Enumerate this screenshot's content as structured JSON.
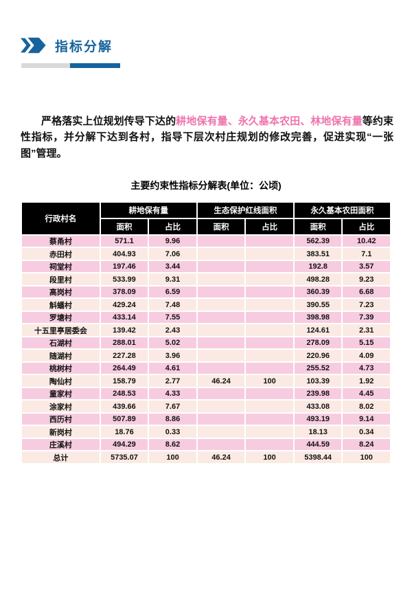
{
  "colors": {
    "accent_blue": "#17639d",
    "bar_gray": "#d9d9d9",
    "highlight_pink": "#ef73ac",
    "row_pink": "#f7cce0",
    "row_cream": "#fbeae3",
    "table_header_bg": "#000000"
  },
  "header": {
    "title": "指标分解"
  },
  "paragraph": {
    "lead": "严格落实上位规划传导下达的",
    "highlight": "耕地保有量、永久基本农田、林地保有量",
    "rest": "等约束性指标，并分解下达到各村，指导下层次村庄规划的修改完善，促进实现“一张图”管理。"
  },
  "table": {
    "title": "主要约束性指标分解表(单位：公顷)",
    "header": {
      "village": "行政村名",
      "groups": [
        {
          "label": "耕地保有量"
        },
        {
          "label": "生态保护红线面积"
        },
        {
          "label": "永久基本农田面积"
        }
      ],
      "area": "面积",
      "pct": "占比"
    },
    "rows": [
      [
        "蔡甬村",
        "571.1",
        "9.96",
        "",
        "",
        "562.39",
        "10.42"
      ],
      [
        "赤田村",
        "404.93",
        "7.06",
        "",
        "",
        "383.51",
        "7.1"
      ],
      [
        "祠堂村",
        "197.46",
        "3.44",
        "",
        "",
        "192.8",
        "3.57"
      ],
      [
        "段里村",
        "533.99",
        "9.31",
        "",
        "",
        "498.28",
        "9.23"
      ],
      [
        "高岗村",
        "378.09",
        "6.59",
        "",
        "",
        "360.39",
        "6.68"
      ],
      [
        "斛蟠村",
        "429.24",
        "7.48",
        "",
        "",
        "390.55",
        "7.23"
      ],
      [
        "罗塘村",
        "433.14",
        "7.55",
        "",
        "",
        "398.98",
        "7.39"
      ],
      [
        "十五里亭居委会",
        "139.42",
        "2.43",
        "",
        "",
        "124.61",
        "2.31"
      ],
      [
        "石湖村",
        "288.01",
        "5.02",
        "",
        "",
        "278.09",
        "5.15"
      ],
      [
        "随湖村",
        "227.28",
        "3.96",
        "",
        "",
        "220.96",
        "4.09"
      ],
      [
        "桃树村",
        "264.49",
        "4.61",
        "",
        "",
        "255.52",
        "4.73"
      ],
      [
        "陶仙村",
        "158.79",
        "2.77",
        "46.24",
        "100",
        "103.39",
        "1.92"
      ],
      [
        "童家村",
        "248.53",
        "4.33",
        "",
        "",
        "239.98",
        "4.45"
      ],
      [
        "涂家村",
        "439.66",
        "7.67",
        "",
        "",
        "433.08",
        "8.02"
      ],
      [
        "西历村",
        "507.89",
        "8.86",
        "",
        "",
        "493.19",
        "9.14"
      ],
      [
        "新岗村",
        "18.76",
        "0.33",
        "",
        "",
        "18.13",
        "0.34"
      ],
      [
        "庄溪村",
        "494.29",
        "8.62",
        "",
        "",
        "444.59",
        "8.24"
      ],
      [
        "总计",
        "5735.07",
        "100",
        "46.24",
        "100",
        "5398.44",
        "100"
      ]
    ]
  }
}
